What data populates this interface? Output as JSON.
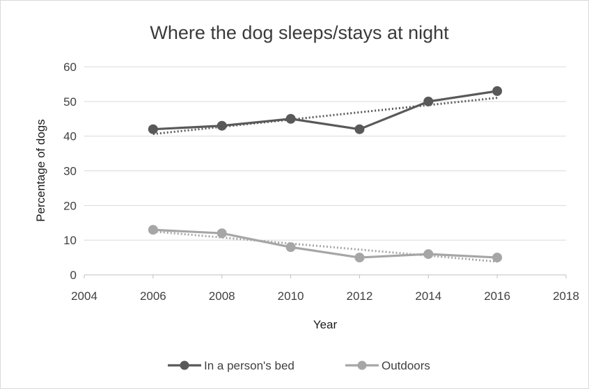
{
  "chart_data": {
    "type": "line",
    "title": "Where the dog sleeps/stays at night",
    "xlabel": "Year",
    "ylabel": "Percentage of dogs",
    "xlim": [
      2004,
      2018
    ],
    "ylim": [
      0,
      60
    ],
    "xticks": [
      2004,
      2006,
      2008,
      2010,
      2012,
      2014,
      2016,
      2018
    ],
    "yticks": [
      0,
      10,
      20,
      30,
      40,
      50,
      60
    ],
    "grid": "horizontal",
    "legend_position": "bottom",
    "series": [
      {
        "name": "In a person's bed",
        "color": "#595959",
        "x": [
          2006,
          2008,
          2010,
          2012,
          2014,
          2016
        ],
        "y": [
          42,
          43,
          45,
          42,
          50,
          53
        ],
        "trendline": "linear"
      },
      {
        "name": "Outdoors",
        "color": "#a6a6a6",
        "x": [
          2006,
          2008,
          2010,
          2012,
          2014,
          2016
        ],
        "y": [
          13,
          12,
          8,
          5,
          6,
          5
        ],
        "trendline": "linear"
      }
    ]
  }
}
